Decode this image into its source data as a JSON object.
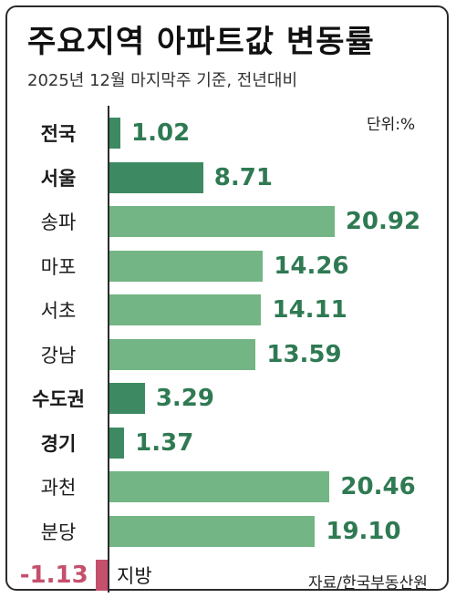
{
  "title": "주요지역 아파트값 변동률",
  "subtitle": "2025년 12월 마지막주 기준, 전년대비",
  "unit": "단위:%",
  "source": "자료/한국부동산원",
  "colors": {
    "dark_green": "#3d8a62",
    "light_green": "#73b585",
    "value_green": "#2f7a53",
    "negative": "#c4506d"
  },
  "chart_data": {
    "type": "bar",
    "orientation": "horizontal",
    "title": "주요지역 아파트값 변동률",
    "subtitle": "2025년 12월 마지막주 기준, 전년대비",
    "unit": "%",
    "categories": [
      "전국",
      "서울",
      "송파",
      "마포",
      "서초",
      "강남",
      "수도권",
      "경기",
      "과천",
      "분당",
      "지방"
    ],
    "values": [
      1.02,
      8.71,
      20.92,
      14.26,
      14.11,
      13.59,
      3.29,
      1.37,
      20.46,
      19.1,
      -1.13
    ],
    "value_labels": [
      "1.02",
      "8.71",
      "20.92",
      "14.26",
      "14.11",
      "13.59",
      "3.29",
      "1.37",
      "20.46",
      "19.10",
      "-1.13"
    ],
    "bar_shade": [
      "dark",
      "dark",
      "light",
      "light",
      "light",
      "light",
      "dark",
      "dark",
      "light",
      "light",
      "negative"
    ],
    "xlim": [
      -1.5,
      21
    ],
    "grid": false,
    "legend": "none"
  }
}
